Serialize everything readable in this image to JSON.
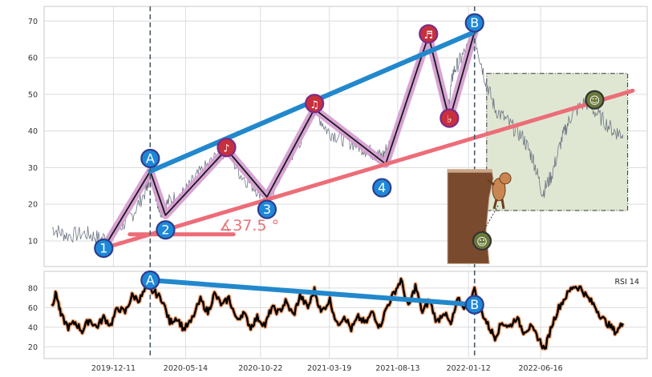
{
  "chart_data": [
    {
      "panel": "price",
      "type": "line",
      "title": "",
      "xlabel": "",
      "ylabel": "",
      "ylim": [
        3,
        74
      ],
      "yticks": [
        10,
        20,
        30,
        40,
        50,
        60,
        70
      ],
      "grid": true,
      "series": [
        {
          "name": "",
          "color": "#6f7784",
          "points": [
            [
              "2019-08-01",
              13.5
            ],
            [
              "2019-09-01",
              11.5
            ],
            [
              "2019-10-15",
              12
            ],
            [
              "2019-11-15",
              10.5
            ],
            [
              "2019-12-20",
              13
            ],
            [
              "2020-01-20",
              17
            ],
            [
              "2020-02-20",
              24
            ],
            [
              "2020-02-28",
              29
            ],
            [
              "2020-03-20",
              18
            ],
            [
              "2020-04-10",
              21
            ],
            [
              "2020-05-10",
              23
            ],
            [
              "2020-06-10",
              28
            ],
            [
              "2020-07-20",
              33
            ],
            [
              "2020-08-10",
              35
            ],
            [
              "2020-09-10",
              28
            ],
            [
              "2020-10-15",
              24
            ],
            [
              "2020-11-12",
              22
            ],
            [
              "2020-12-10",
              30
            ],
            [
              "2021-01-10",
              36
            ],
            [
              "2021-02-15",
              46
            ],
            [
              "2021-03-15",
              40
            ],
            [
              "2021-04-15",
              38
            ],
            [
              "2021-05-20",
              36
            ],
            [
              "2021-06-20",
              34
            ],
            [
              "2021-07-10",
              33
            ],
            [
              "2021-07-30",
              37
            ],
            [
              "2021-08-25",
              45
            ],
            [
              "2021-09-25",
              58
            ],
            [
              "2021-10-18",
              66
            ],
            [
              "2021-11-10",
              54
            ],
            [
              "2021-11-28",
              45
            ],
            [
              "2021-12-10",
              56
            ],
            [
              "2021-12-28",
              60
            ],
            [
              "2022-01-25",
              66
            ],
            [
              "2022-02-15",
              55
            ],
            [
              "2022-03-10",
              46
            ],
            [
              "2022-04-10",
              42
            ],
            [
              "2022-05-10",
              38
            ],
            [
              "2022-06-01",
              32
            ],
            [
              "2022-06-20",
              23
            ],
            [
              "2022-07-10",
              28
            ],
            [
              "2022-08-01",
              38
            ],
            [
              "2022-08-20",
              44
            ],
            [
              "2022-09-20",
              48
            ],
            [
              "2022-10-20",
              44
            ],
            [
              "2022-11-20",
              40
            ],
            [
              "2022-12-10",
              39
            ]
          ]
        },
        {
          "name": "",
          "color": "#1a1a1a",
          "points": [
            [
              "2019-11-20",
              8
            ],
            [
              "2020-02-28",
              29
            ],
            [
              "2020-04-01",
              17
            ],
            [
              "2020-08-10",
              35
            ],
            [
              "2020-11-05",
              22
            ],
            [
              "2021-02-15",
              46
            ],
            [
              "2021-07-18",
              31
            ],
            [
              "2021-10-18",
              66
            ],
            [
              "2021-12-02",
              43
            ],
            [
              "2022-01-25",
              67
            ]
          ]
        }
      ],
      "trendlines": [
        {
          "label": "A–B",
          "color": "#2288cc",
          "from": [
            "2020-02-28",
            29
          ],
          "to": [
            "2022-01-25",
            67
          ]
        },
        {
          "label": "1–4",
          "color": "#ec6d78",
          "from": [
            "2019-11-20",
            8
          ],
          "to": [
            "2022-12-31",
            51
          ]
        },
        {
          "label": "angle base",
          "color": "#ec6d78",
          "from": [
            "2020-01-15",
            11.8
          ],
          "to": [
            "2020-08-25",
            11.8
          ]
        }
      ],
      "markers": [
        {
          "label": "1",
          "x": "2019-11-20",
          "y": 8,
          "style": "blue"
        },
        {
          "label": "A",
          "x": "2020-02-28",
          "y": 32.5,
          "style": "blue"
        },
        {
          "label": "2",
          "x": "2020-04-01",
          "y": 13,
          "style": "blue"
        },
        {
          "label": "3",
          "x": "2020-11-05",
          "y": 18.6,
          "style": "blue"
        },
        {
          "label": "4",
          "x": "2021-07-10",
          "y": 24.5,
          "style": "blue"
        },
        {
          "label": "B",
          "x": "2022-01-25",
          "y": 69.5,
          "style": "blue"
        },
        {
          "label": "♪",
          "x": "2020-08-10",
          "y": 35.5,
          "style": "red"
        },
        {
          "label": "♫",
          "x": "2021-02-15",
          "y": 47.5,
          "style": "red"
        },
        {
          "label": "♬",
          "x": "2021-10-18",
          "y": 66.5,
          "style": "red"
        },
        {
          "label": "♭",
          "x": "2021-12-02",
          "y": 43.5,
          "style": "red"
        },
        {
          "label": "☺",
          "x": "2022-10-10",
          "y": 48.5,
          "style": "olive"
        },
        {
          "label": "☺",
          "x": "2022-02-10",
          "y": 10,
          "style": "olive"
        }
      ],
      "annotation_angle": "∡37.5 °",
      "box": {
        "x0": "2022-02-20",
        "x1": "2022-12-20",
        "y0": 18.3,
        "y1": 55.7,
        "color": "#dfe7d3"
      },
      "vlines": [
        "2020-02-28",
        "2022-01-25"
      ]
    },
    {
      "panel": "rsi",
      "type": "line",
      "label": "RSI 14",
      "ylim": [
        8,
        97
      ],
      "yticks": [
        20,
        40,
        60,
        80
      ],
      "xlim": [
        "2019-07-15",
        "2023-01-31"
      ],
      "xticks": [
        "2019-12-11",
        "2020-05-14",
        "2020-10-22",
        "2021-03-19",
        "2021-08-13",
        "2022-01-12",
        "2022-06-16"
      ],
      "grid": true,
      "series": [
        {
          "name": "",
          "color": "#000000",
          "outline": "#f0a070",
          "points": [
            [
              "2019-08-01",
              63
            ],
            [
              "2019-08-10",
              75
            ],
            [
              "2019-08-20",
              52
            ],
            [
              "2019-09-05",
              40
            ],
            [
              "2019-09-20",
              45
            ],
            [
              "2019-10-05",
              36
            ],
            [
              "2019-10-20",
              48
            ],
            [
              "2019-11-05",
              40
            ],
            [
              "2019-11-20",
              50
            ],
            [
              "2019-12-05",
              42
            ],
            [
              "2019-12-20",
              60
            ],
            [
              "2020-01-05",
              55
            ],
            [
              "2020-01-20",
              72
            ],
            [
              "2020-02-05",
              68
            ],
            [
              "2020-02-20",
              80
            ],
            [
              "2020-03-10",
              75
            ],
            [
              "2020-03-25",
              68
            ],
            [
              "2020-04-10",
              45
            ],
            [
              "2020-04-25",
              50
            ],
            [
              "2020-05-10",
              38
            ],
            [
              "2020-05-25",
              45
            ],
            [
              "2020-06-15",
              68
            ],
            [
              "2020-07-01",
              55
            ],
            [
              "2020-07-15",
              74
            ],
            [
              "2020-08-01",
              62
            ],
            [
              "2020-08-15",
              70
            ],
            [
              "2020-09-01",
              47
            ],
            [
              "2020-09-15",
              55
            ],
            [
              "2020-10-01",
              40
            ],
            [
              "2020-10-15",
              50
            ],
            [
              "2020-11-01",
              42
            ],
            [
              "2020-11-15",
              60
            ],
            [
              "2020-12-01",
              55
            ],
            [
              "2020-12-15",
              66
            ],
            [
              "2021-01-01",
              52
            ],
            [
              "2021-01-15",
              72
            ],
            [
              "2021-02-01",
              60
            ],
            [
              "2021-02-15",
              78
            ],
            [
              "2021-03-01",
              55
            ],
            [
              "2021-03-20",
              68
            ],
            [
              "2021-04-05",
              42
            ],
            [
              "2021-04-20",
              52
            ],
            [
              "2021-05-05",
              38
            ],
            [
              "2021-05-20",
              50
            ],
            [
              "2021-06-05",
              44
            ],
            [
              "2021-06-20",
              56
            ],
            [
              "2021-07-05",
              40
            ],
            [
              "2021-07-20",
              60
            ],
            [
              "2021-08-05",
              75
            ],
            [
              "2021-08-20",
              88
            ],
            [
              "2021-09-05",
              60
            ],
            [
              "2021-09-20",
              82
            ],
            [
              "2021-10-05",
              55
            ],
            [
              "2021-10-20",
              68
            ],
            [
              "2021-11-05",
              45
            ],
            [
              "2021-11-20",
              56
            ],
            [
              "2021-12-05",
              42
            ],
            [
              "2021-12-20",
              68
            ],
            [
              "2022-01-05",
              60
            ],
            [
              "2022-01-25",
              78
            ],
            [
              "2022-02-10",
              55
            ],
            [
              "2022-02-25",
              40
            ],
            [
              "2022-03-10",
              30
            ],
            [
              "2022-03-25",
              45
            ],
            [
              "2022-04-10",
              40
            ],
            [
              "2022-04-25",
              50
            ],
            [
              "2022-05-10",
              36
            ],
            [
              "2022-05-25",
              40
            ],
            [
              "2022-06-10",
              30
            ],
            [
              "2022-06-25",
              17
            ],
            [
              "2022-07-10",
              42
            ],
            [
              "2022-07-25",
              60
            ],
            [
              "2022-08-10",
              72
            ],
            [
              "2022-08-25",
              82
            ],
            [
              "2022-09-10",
              80
            ],
            [
              "2022-09-25",
              70
            ],
            [
              "2022-10-10",
              62
            ],
            [
              "2022-10-25",
              50
            ],
            [
              "2022-11-10",
              42
            ],
            [
              "2022-11-25",
              35
            ],
            [
              "2022-12-10",
              44
            ]
          ]
        }
      ],
      "trendlines": [
        {
          "label": "A–B",
          "color": "#2288cc",
          "from": [
            "2020-02-28",
            88
          ],
          "to": [
            "2022-01-25",
            63
          ]
        }
      ],
      "markers": [
        {
          "label": "A",
          "x": "2020-02-28",
          "y": 88,
          "style": "blue"
        },
        {
          "label": "B",
          "x": "2022-01-25",
          "y": 63,
          "style": "blue"
        }
      ]
    }
  ]
}
